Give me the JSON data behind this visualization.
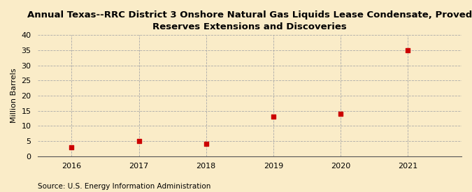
{
  "title": "Annual Texas--RRC District 3 Onshore Natural Gas Liquids Lease Condensate, Proved\nReserves Extensions and Discoveries",
  "ylabel": "Million Barrels",
  "source": "Source: U.S. Energy Information Administration",
  "x": [
    2016,
    2017,
    2018,
    2019,
    2020,
    2021
  ],
  "y": [
    3.0,
    5.0,
    4.0,
    13.0,
    14.0,
    35.0
  ],
  "ylim": [
    0,
    40
  ],
  "yticks": [
    0,
    5,
    10,
    15,
    20,
    25,
    30,
    35,
    40
  ],
  "xlim": [
    2015.5,
    2021.8
  ],
  "marker_color": "#cc0000",
  "marker": "s",
  "marker_size": 5,
  "bg_color": "#faecc8",
  "grid_color": "#aaaaaa",
  "title_fontsize": 9.5,
  "label_fontsize": 8,
  "tick_fontsize": 8,
  "source_fontsize": 7.5
}
